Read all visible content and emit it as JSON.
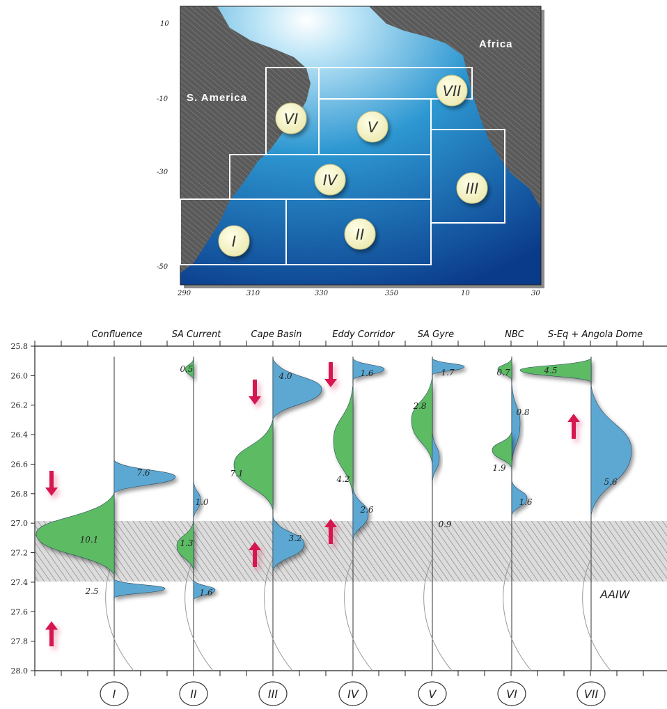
{
  "map": {
    "lat_ticks": [
      "10",
      "-10",
      "-30",
      "-50"
    ],
    "lon_ticks": [
      "290",
      "310",
      "330",
      "350",
      "10",
      "30"
    ],
    "continent_labels": {
      "south_america": "S. America",
      "africa": "Africa"
    },
    "regions": [
      "I",
      "II",
      "III",
      "IV",
      "V",
      "VI",
      "VII"
    ]
  },
  "chart_data": {
    "type": "area",
    "y_axis": {
      "ticks": [
        "25.8",
        "26.0",
        "26.2",
        "26.4",
        "26.6",
        "26.8",
        "27.0",
        "27.2",
        "27.4",
        "27.6",
        "27.8",
        "28.0"
      ],
      "range": [
        25.8,
        28.0
      ],
      "inverted": true
    },
    "shaded_band": {
      "label": "AAIW",
      "range": [
        27.0,
        27.4
      ]
    },
    "colors": {
      "positive": "#5ba8d3",
      "negative": "#5dbb63",
      "arrow": "#d6154f"
    },
    "columns": [
      {
        "roman": "I",
        "title": "Confluence",
        "values": [
          {
            "label": "7.6",
            "sign": "positive"
          },
          {
            "label": "10.1",
            "sign": "negative"
          },
          {
            "label": "2.5",
            "sign": "positive"
          }
        ],
        "arrows": [
          "down",
          "up"
        ]
      },
      {
        "roman": "II",
        "title": "SA Current",
        "values": [
          {
            "label": "0.5",
            "sign": "negative"
          },
          {
            "label": "1.0",
            "sign": "positive"
          },
          {
            "label": "1.3",
            "sign": "negative"
          },
          {
            "label": "1.6",
            "sign": "positive"
          }
        ],
        "arrows": []
      },
      {
        "roman": "III",
        "title": "Cape Basin",
        "values": [
          {
            "label": "4.0",
            "sign": "positive"
          },
          {
            "label": "7.1",
            "sign": "negative"
          },
          {
            "label": "3.2",
            "sign": "positive"
          }
        ],
        "arrows": [
          "down",
          "up"
        ]
      },
      {
        "roman": "IV",
        "title": "Eddy Corridor",
        "values": [
          {
            "label": "1.6",
            "sign": "positive"
          },
          {
            "label": "4.2",
            "sign": "negative"
          },
          {
            "label": "2.6",
            "sign": "positive"
          }
        ],
        "arrows": [
          "down",
          "up"
        ]
      },
      {
        "roman": "V",
        "title": "SA Gyre",
        "values": [
          {
            "label": "1.7",
            "sign": "positive"
          },
          {
            "label": "2.8",
            "sign": "negative"
          },
          {
            "label": "0.9",
            "sign": "positive"
          }
        ],
        "arrows": []
      },
      {
        "roman": "VI",
        "title": "NBC",
        "values": [
          {
            "label": "0.7",
            "sign": "negative"
          },
          {
            "label": "0.8",
            "sign": "positive"
          },
          {
            "label": "1.9",
            "sign": "negative"
          },
          {
            "label": "1.6",
            "sign": "positive"
          }
        ],
        "arrows": []
      },
      {
        "roman": "VII",
        "title": "S-Eq + Angola Dome",
        "values": [
          {
            "label": "4.5",
            "sign": "negative"
          },
          {
            "label": "5.6",
            "sign": "positive"
          }
        ],
        "arrows": [
          "up"
        ]
      }
    ]
  }
}
